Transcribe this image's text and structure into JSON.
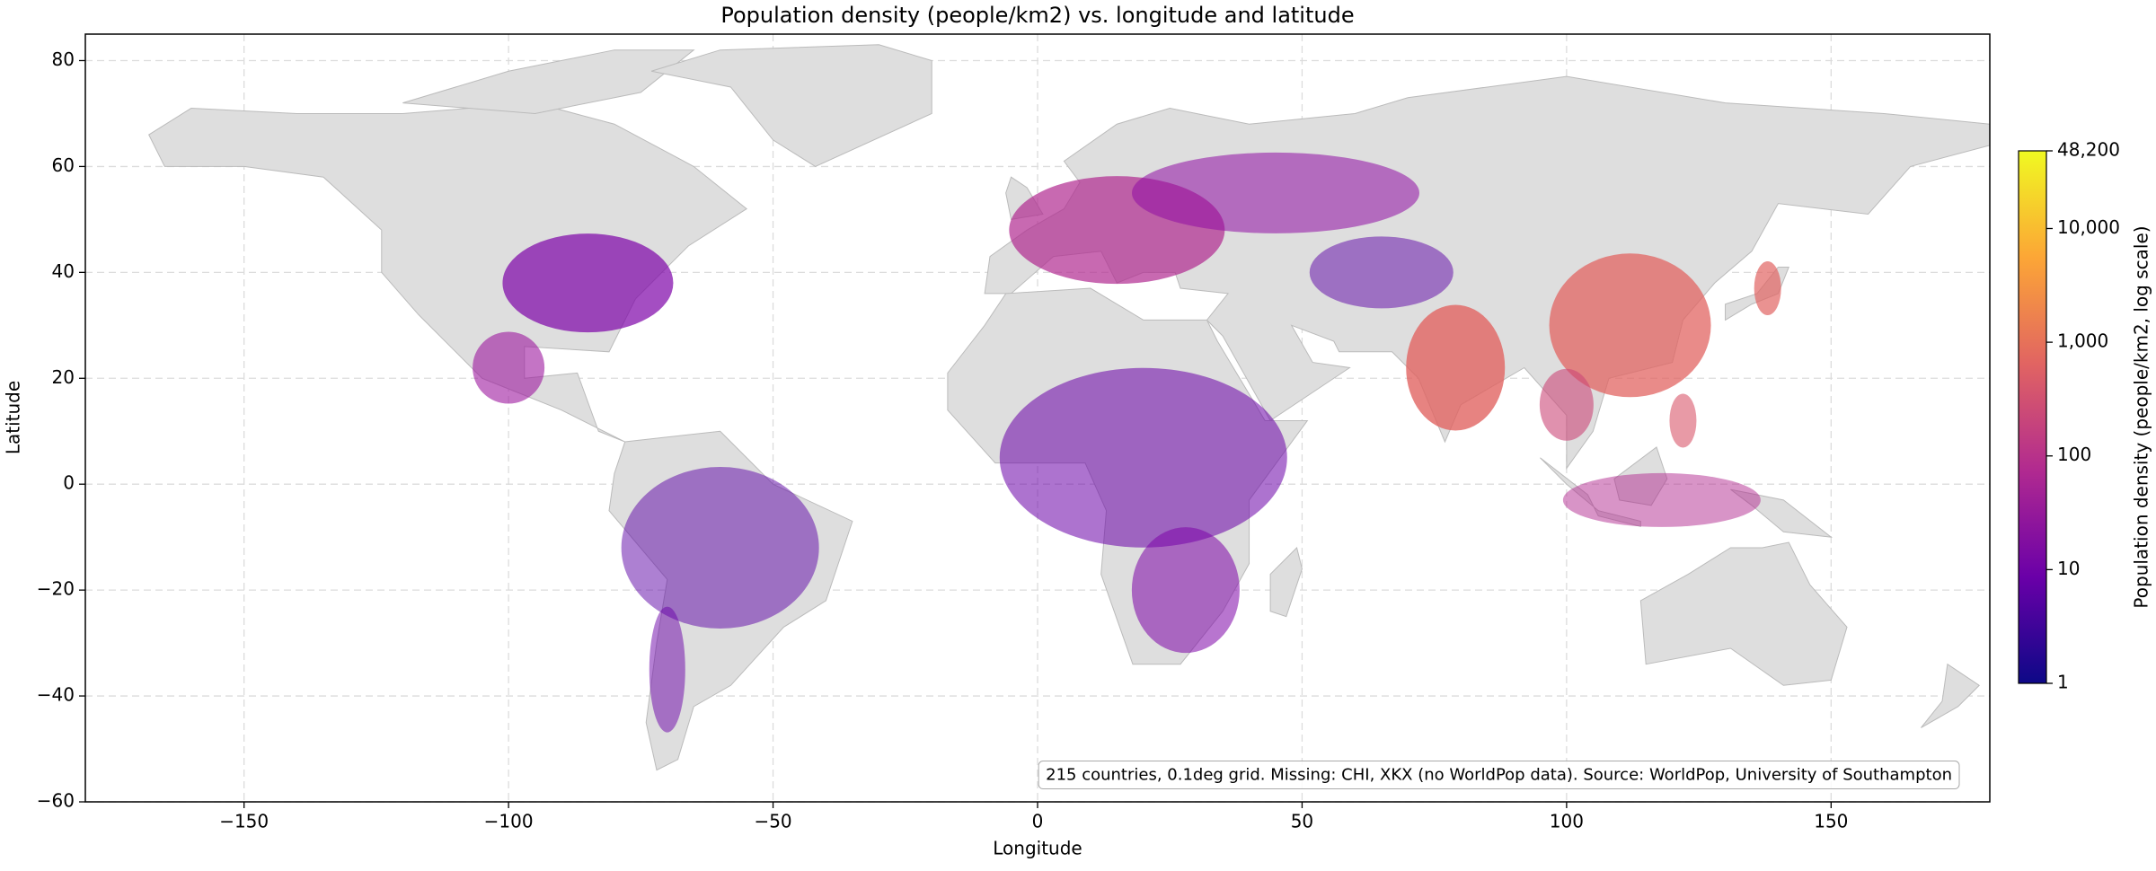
{
  "chart_data": {
    "type": "map",
    "title": "Population density (people/km2) vs. longitude and latitude",
    "x_label": "Longitude",
    "y_label": "Latitude",
    "xlim": [
      -180,
      180
    ],
    "ylim": [
      -60,
      85
    ],
    "xticks": [
      {
        "value": -150,
        "label": "−150"
      },
      {
        "value": -100,
        "label": "−100"
      },
      {
        "value": -50,
        "label": "−50"
      },
      0,
      50,
      100,
      150
    ],
    "yticks": [
      {
        "value": -60,
        "label": "−60"
      },
      {
        "value": -40,
        "label": "−40"
      },
      {
        "value": -20,
        "label": "−20"
      },
      0,
      20,
      40,
      60,
      80
    ],
    "grid": true,
    "colorbar": {
      "label": "Population density (people/km2, log scale)",
      "scale": "log",
      "lim": [
        1,
        48200
      ],
      "ticks": [
        1,
        10,
        100,
        {
          "value": 1000,
          "label": "1,000"
        },
        {
          "value": 10000,
          "label": "10,000"
        },
        {
          "value": 48200,
          "label": "48,200"
        }
      ],
      "colors": [
        "#0d0887",
        "#6a00a8",
        "#b12a90",
        "#e16462",
        "#fca636",
        "#f0f921"
      ]
    },
    "annotation": "215 countries, 0.1deg grid. Missing: CHI, XKX (no WorldPop data). Source: WorldPop, University of Southampton"
  }
}
